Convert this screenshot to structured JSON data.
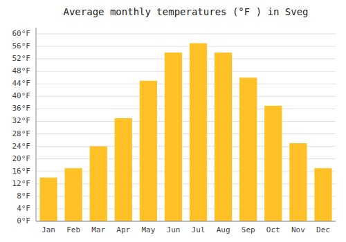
{
  "chart_data": {
    "type": "bar",
    "title": "Average monthly temperatures (°F ) in Sveg",
    "categories": [
      "Jan",
      "Feb",
      "Mar",
      "Apr",
      "May",
      "Jun",
      "Jul",
      "Aug",
      "Sep",
      "Oct",
      "Nov",
      "Dec"
    ],
    "values": [
      14,
      17,
      24,
      33,
      45,
      54,
      57,
      54,
      46,
      37,
      25,
      17
    ],
    "color": "#FFC125",
    "ylim": [
      0,
      62
    ],
    "yticks": [
      {
        "value": 0,
        "label": "0°F"
      },
      {
        "value": 4,
        "label": "4°F"
      },
      {
        "value": 8,
        "label": "8°F"
      },
      {
        "value": 12,
        "label": "12°F"
      },
      {
        "value": 16,
        "label": "16°F"
      },
      {
        "value": 20,
        "label": "20°F"
      },
      {
        "value": 24,
        "label": "24°F"
      },
      {
        "value": 28,
        "label": "28°F"
      },
      {
        "value": 32,
        "label": "32°F"
      },
      {
        "value": 36,
        "label": "36°F"
      },
      {
        "value": 40,
        "label": "40°F"
      },
      {
        "value": 44,
        "label": "44°F"
      },
      {
        "value": 48,
        "label": "48°F"
      },
      {
        "value": 52,
        "label": "52°F"
      },
      {
        "value": 56,
        "label": "56°F"
      },
      {
        "value": 60,
        "label": "60°F"
      }
    ],
    "grid": true
  }
}
